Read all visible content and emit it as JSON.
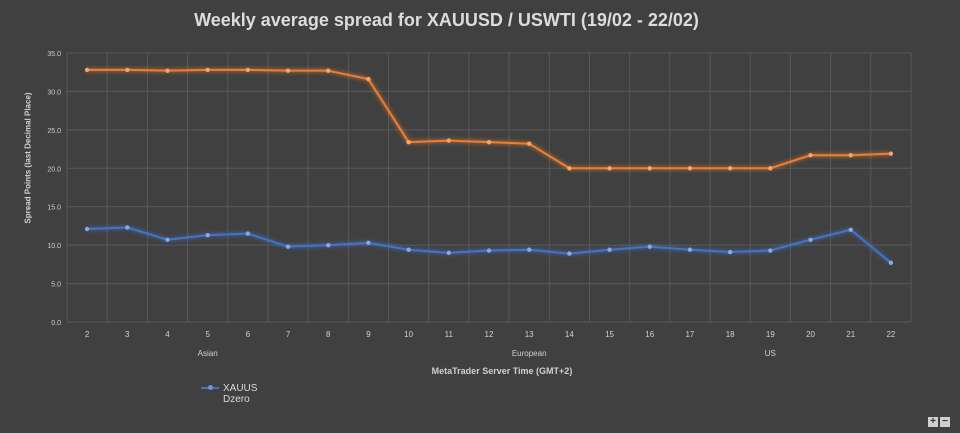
{
  "chart_data": {
    "type": "line",
    "title": "Weekly average spread for XAUUSD / USWTI  (19/02 - 22/02)",
    "xlabel": "MetaTrader Server Time (GMT+2)",
    "ylabel": "Spread Points  (last Decimal Place)",
    "x": [
      2,
      3,
      4,
      5,
      6,
      7,
      8,
      9,
      10,
      11,
      12,
      13,
      14,
      15,
      16,
      17,
      18,
      19,
      20,
      21,
      22
    ],
    "x_tick_labels": [
      "2",
      "3",
      "4",
      "5",
      "6",
      "7",
      "8",
      "9",
      "10",
      "11",
      "12",
      "13",
      "14",
      "15",
      "16",
      "17",
      "18",
      "19",
      "20",
      "21",
      "22"
    ],
    "ylim": [
      0,
      35
    ],
    "y_tick_labels": [
      "0.0",
      "5.0",
      "10.0",
      "15.0",
      "20.0",
      "25.0",
      "30.0",
      "35.0"
    ],
    "sessions": [
      {
        "label": "Asian",
        "x": 5
      },
      {
        "label": "European",
        "x": 13
      },
      {
        "label": "US",
        "x": 19
      }
    ],
    "grid": true,
    "legend_position": "bottom-left",
    "series": [
      {
        "name": "XAUUS Dzero",
        "color": "#4472c4",
        "values": [
          12.1,
          12.3,
          10.7,
          11.3,
          11.5,
          9.8,
          10.0,
          10.3,
          9.4,
          9.0,
          9.3,
          9.4,
          8.9,
          9.4,
          9.8,
          9.4,
          9.1,
          9.3,
          10.7,
          12.0,
          7.7
        ]
      },
      {
        "name": "",
        "color": "#ed7d31",
        "values": [
          32.8,
          32.8,
          32.7,
          32.8,
          32.8,
          32.7,
          32.7,
          31.6,
          23.4,
          23.6,
          23.4,
          23.2,
          20.0,
          20.0,
          20.0,
          20.0,
          20.0,
          20.0,
          21.7,
          21.7,
          21.9
        ]
      }
    ]
  },
  "legend": {
    "line1": "XAUUS",
    "line2": "Dzero"
  },
  "controls": {
    "zoom_in": "+",
    "zoom_out": "−"
  }
}
